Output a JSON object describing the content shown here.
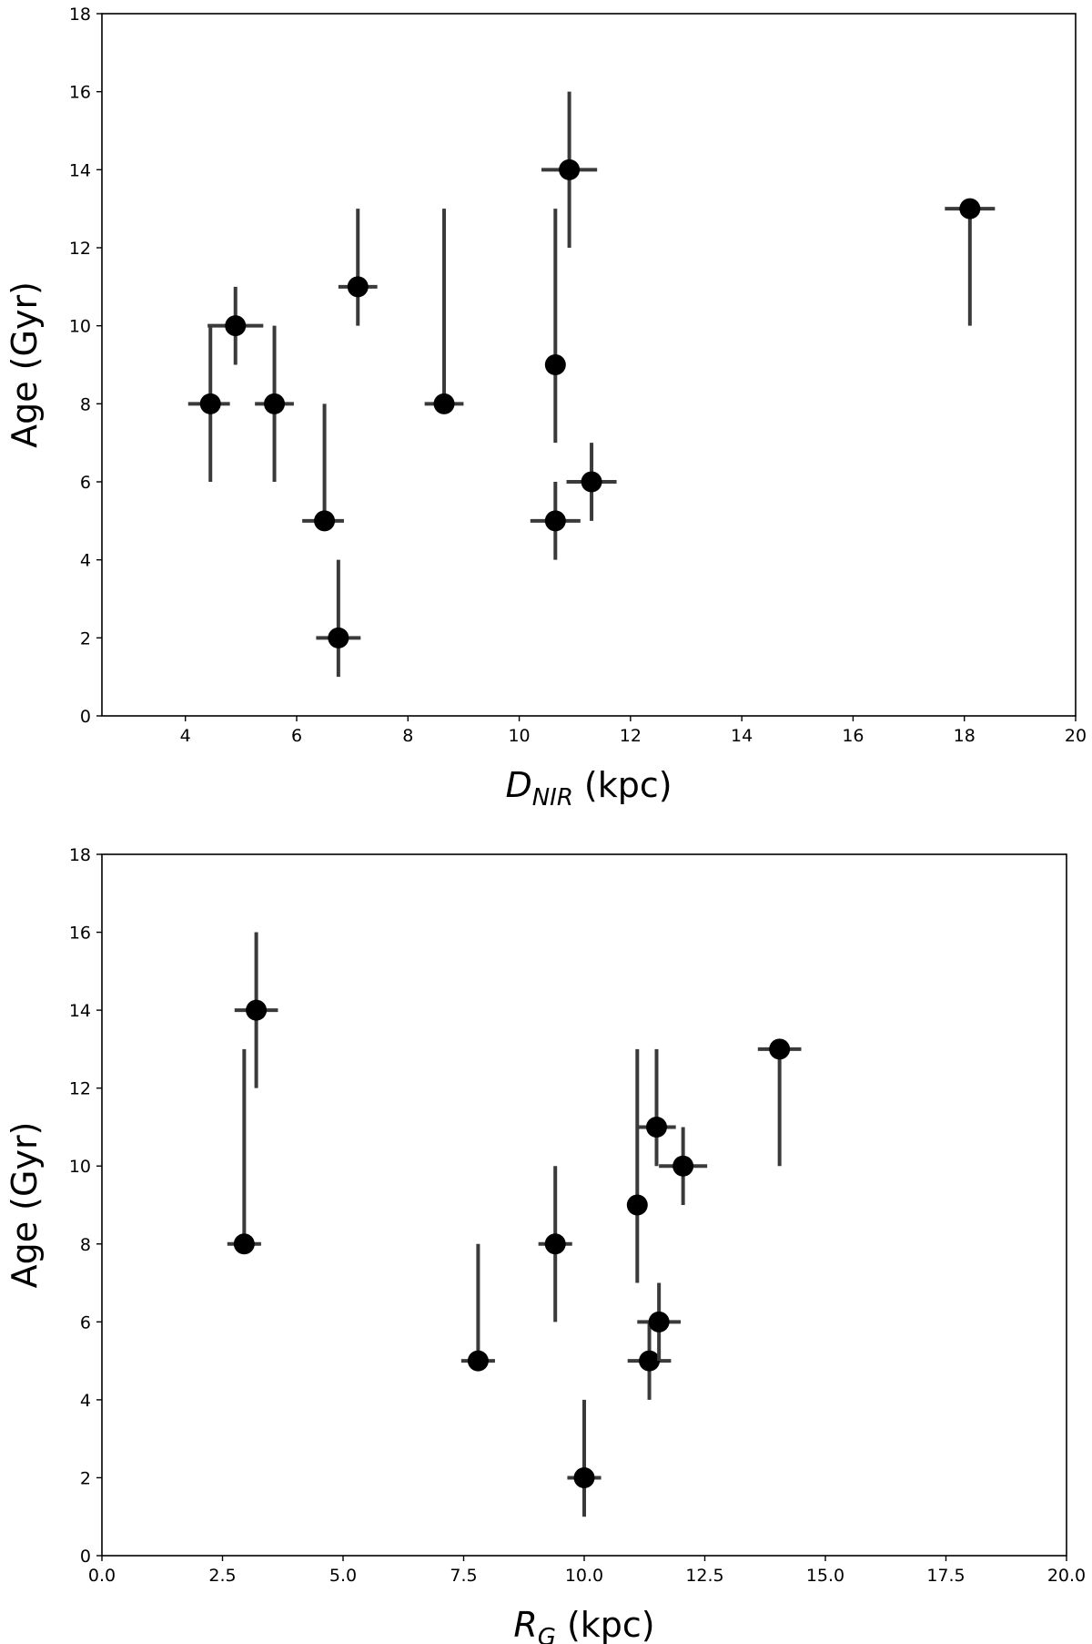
{
  "chart_data": [
    {
      "type": "scatter",
      "ylabel": "Age (Gyr)",
      "xlabel_main": "D",
      "xlabel_sub": "NIR",
      "xlabel_unit": "(kpc)",
      "xlim": [
        2.5,
        20
      ],
      "ylim": [
        0,
        18
      ],
      "xticks": [
        4,
        6,
        8,
        10,
        12,
        14,
        16,
        18,
        20
      ],
      "xtick_labels": [
        "4",
        "6",
        "8",
        "10",
        "12",
        "14",
        "16",
        "18",
        "20"
      ],
      "yticks": [
        0,
        2,
        4,
        6,
        8,
        10,
        12,
        14,
        16,
        18
      ],
      "ytick_labels": [
        "0",
        "2",
        "4",
        "6",
        "8",
        "10",
        "12",
        "14",
        "16",
        "18"
      ],
      "grid": false,
      "points": [
        {
          "x": 4.45,
          "y": 8,
          "xerr": [
            0.4,
            0.35
          ],
          "yerr": [
            2,
            2
          ]
        },
        {
          "x": 4.9,
          "y": 10,
          "xerr": [
            0.5,
            0.5
          ],
          "yerr": [
            1,
            1
          ]
        },
        {
          "x": 5.6,
          "y": 8,
          "xerr": [
            0.35,
            0.35
          ],
          "yerr": [
            2,
            2
          ]
        },
        {
          "x": 6.5,
          "y": 5,
          "xerr": [
            0.4,
            0.35
          ],
          "yerr": [
            0,
            3
          ]
        },
        {
          "x": 6.75,
          "y": 2,
          "xerr": [
            0.4,
            0.4
          ],
          "yerr": [
            1,
            2
          ]
        },
        {
          "x": 7.1,
          "y": 11,
          "xerr": [
            0.35,
            0.35
          ],
          "yerr": [
            1,
            2
          ]
        },
        {
          "x": 8.65,
          "y": 8,
          "xerr": [
            0.35,
            0.35
          ],
          "yerr": [
            0,
            5
          ]
        },
        {
          "x": 10.65,
          "y": 9,
          "xerr": [
            0,
            0
          ],
          "yerr": [
            2,
            4
          ]
        },
        {
          "x": 10.65,
          "y": 5,
          "xerr": [
            0.45,
            0.45
          ],
          "yerr": [
            1,
            1
          ]
        },
        {
          "x": 10.9,
          "y": 14,
          "xerr": [
            0.5,
            0.5
          ],
          "yerr": [
            2,
            2
          ]
        },
        {
          "x": 11.3,
          "y": 6,
          "xerr": [
            0.45,
            0.45
          ],
          "yerr": [
            1,
            1
          ]
        },
        {
          "x": 18.1,
          "y": 13,
          "xerr": [
            0.45,
            0.45
          ],
          "yerr": [
            3,
            0
          ]
        }
      ]
    },
    {
      "type": "scatter",
      "ylabel": "Age (Gyr)",
      "xlabel_main": "R",
      "xlabel_sub": "G",
      "xlabel_unit": "(kpc)",
      "xlim": [
        0,
        20
      ],
      "ylim": [
        0,
        18
      ],
      "xticks": [
        0,
        2.5,
        5,
        7.5,
        10,
        12.5,
        15,
        17.5,
        20
      ],
      "xtick_labels": [
        "0.0",
        "2.5",
        "5.0",
        "7.5",
        "10.0",
        "12.5",
        "15.0",
        "17.5",
        "20.0"
      ],
      "yticks": [
        0,
        2,
        4,
        6,
        8,
        10,
        12,
        14,
        16,
        18
      ],
      "ytick_labels": [
        "0",
        "2",
        "4",
        "6",
        "8",
        "10",
        "12",
        "14",
        "16",
        "18"
      ],
      "grid": false,
      "points": [
        {
          "x": 2.95,
          "y": 8,
          "xerr": [
            0.35,
            0.35
          ],
          "yerr": [
            0,
            5
          ]
        },
        {
          "x": 3.2,
          "y": 14,
          "xerr": [
            0.45,
            0.45
          ],
          "yerr": [
            2,
            2
          ]
        },
        {
          "x": 7.8,
          "y": 5,
          "xerr": [
            0.35,
            0.35
          ],
          "yerr": [
            0,
            3
          ]
        },
        {
          "x": 9.4,
          "y": 8,
          "xerr": [
            0.35,
            0.35
          ],
          "yerr": [
            2,
            2
          ]
        },
        {
          "x": 10.0,
          "y": 2,
          "xerr": [
            0.35,
            0.35
          ],
          "yerr": [
            1,
            2
          ]
        },
        {
          "x": 11.1,
          "y": 9,
          "xerr": [
            0,
            0
          ],
          "yerr": [
            2,
            4
          ]
        },
        {
          "x": 11.35,
          "y": 5,
          "xerr": [
            0.45,
            0.45
          ],
          "yerr": [
            1,
            1
          ]
        },
        {
          "x": 11.5,
          "y": 11,
          "xerr": [
            0.4,
            0.4
          ],
          "yerr": [
            1,
            2
          ]
        },
        {
          "x": 11.55,
          "y": 6,
          "xerr": [
            0.45,
            0.45
          ],
          "yerr": [
            1,
            1
          ]
        },
        {
          "x": 12.05,
          "y": 10,
          "xerr": [
            0.5,
            0.5
          ],
          "yerr": [
            1,
            1
          ]
        },
        {
          "x": 14.05,
          "y": 13,
          "xerr": [
            0.45,
            0.45
          ],
          "yerr": [
            3,
            0
          ]
        }
      ]
    }
  ]
}
